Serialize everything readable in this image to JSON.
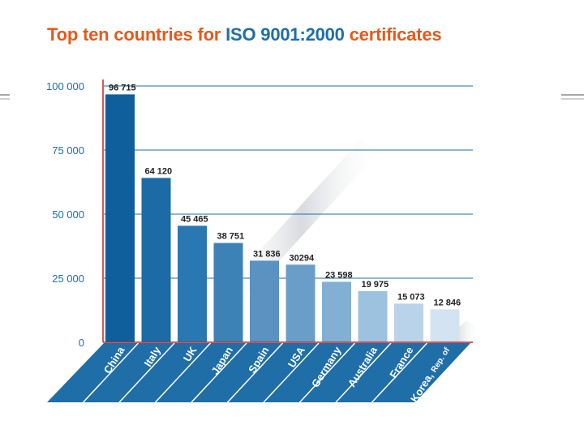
{
  "title": {
    "part1": "Top ten countries for",
    "part2": "ISO 9001:2000",
    "part3": "certificates"
  },
  "colors": {
    "title_accent": "#e35a1d",
    "title_highlight": "#1f6ea8",
    "axis_line": "#cc2222",
    "gridline": "#1f6ea8",
    "tick_text": "#1f6ea8",
    "category_band": "#1f6ea8",
    "bar_gradient": [
      "#0f5f9c",
      "#1c6aa6",
      "#2a78b2",
      "#3d82b6",
      "#5a92c2",
      "#6a9ec9",
      "#82b0d5",
      "#9cc2e0",
      "#b9d3ea",
      "#d3e3f2"
    ]
  },
  "chart_data": {
    "type": "bar",
    "title": "Top ten countries for ISO 9001:2000 certificates",
    "categories": [
      "China",
      "Italy",
      "UK",
      "Japan",
      "Spain",
      "USA",
      "Germany",
      "Australia",
      "France",
      "Korea, Rep. of"
    ],
    "category_lines": [
      [
        "China"
      ],
      [
        "Italy"
      ],
      [
        "UK"
      ],
      [
        "Japan"
      ],
      [
        "Spain"
      ],
      [
        "USA"
      ],
      [
        "Germany"
      ],
      [
        "Australia"
      ],
      [
        "France"
      ],
      [
        "Korea,",
        "Rep. of"
      ]
    ],
    "values": [
      96715,
      64120,
      45465,
      38751,
      31836,
      30294,
      23598,
      19975,
      15073,
      12846
    ],
    "value_labels": [
      "96 715",
      "64 120",
      "45 465",
      "38 751",
      "31 836",
      "30294",
      "23 598",
      "19 975",
      "15 073",
      "12 846"
    ],
    "ylim": [
      0,
      100000
    ],
    "yticks": [
      0,
      25000,
      50000,
      75000,
      100000
    ],
    "ytick_labels": [
      "0",
      "25 000",
      "50 000",
      "75 000",
      "100 000"
    ],
    "xlabel": "",
    "ylabel": "",
    "grid": true,
    "legend": "none"
  }
}
